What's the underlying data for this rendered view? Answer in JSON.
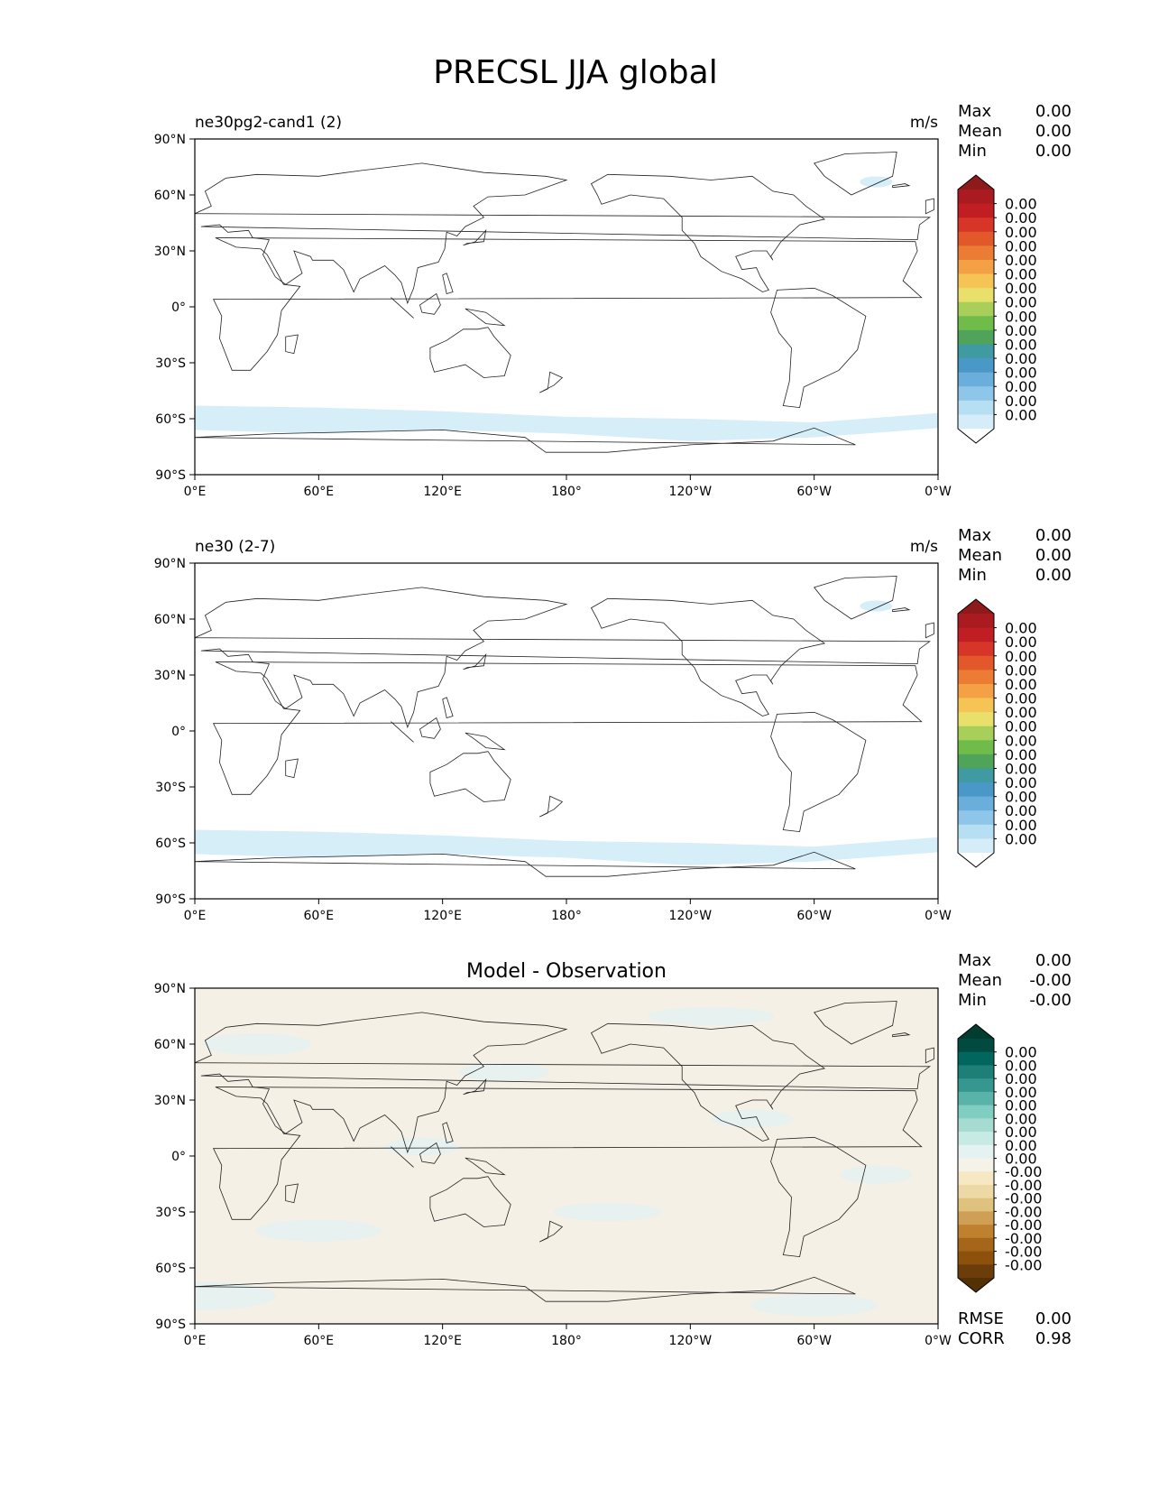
{
  "figure": {
    "title": "PRECSL JJA global"
  },
  "axes": {
    "lat_ticks": [
      "90°N",
      "60°N",
      "30°N",
      "0°",
      "30°S",
      "60°S",
      "90°S"
    ],
    "lon_ticks": [
      "0°E",
      "60°E",
      "120°E",
      "180°",
      "120°W",
      "60°W",
      "0°W"
    ]
  },
  "panels": [
    {
      "left_title": "ne30pg2-cand1 (2)",
      "center_title": "",
      "units": "m/s",
      "stats": [
        {
          "label": "Max",
          "value": "0.00"
        },
        {
          "label": "Mean",
          "value": "0.00"
        },
        {
          "label": "Min",
          "value": "0.00"
        }
      ],
      "colorbar": {
        "labels": [
          "0.00",
          "0.00",
          "0.00",
          "0.00",
          "0.00",
          "0.00",
          "0.00",
          "0.00",
          "0.00",
          "0.00",
          "0.00",
          "0.00",
          "0.00",
          "0.00",
          "0.00",
          "0.00"
        ],
        "colors": [
          "#ffffff",
          "#d5edf8",
          "#b6dff4",
          "#8ec6ea",
          "#6aaedc",
          "#4a98c8",
          "#3f9aa2",
          "#4fa45a",
          "#6fbc4a",
          "#a8cf5a",
          "#e8e06a",
          "#f6c355",
          "#f3a144",
          "#ec7c34",
          "#e3582b",
          "#d63528",
          "#c11e24",
          "#a91b20",
          "#8e1a1b"
        ]
      },
      "field": {
        "fill": "#d6eef8",
        "bands": "southern-ocean"
      },
      "footer": []
    },
    {
      "left_title": "ne30 (2-7)",
      "center_title": "",
      "units": "m/s",
      "stats": [
        {
          "label": "Max",
          "value": "0.00"
        },
        {
          "label": "Mean",
          "value": "0.00"
        },
        {
          "label": "Min",
          "value": "0.00"
        }
      ],
      "colorbar": {
        "labels": [
          "0.00",
          "0.00",
          "0.00",
          "0.00",
          "0.00",
          "0.00",
          "0.00",
          "0.00",
          "0.00",
          "0.00",
          "0.00",
          "0.00",
          "0.00",
          "0.00",
          "0.00",
          "0.00"
        ],
        "colors": [
          "#ffffff",
          "#d5edf8",
          "#b6dff4",
          "#8ec6ea",
          "#6aaedc",
          "#4a98c8",
          "#3f9aa2",
          "#4fa45a",
          "#6fbc4a",
          "#a8cf5a",
          "#e8e06a",
          "#f6c355",
          "#f3a144",
          "#ec7c34",
          "#e3582b",
          "#d63528",
          "#c11e24",
          "#a91b20",
          "#8e1a1b"
        ]
      },
      "field": {
        "fill": "#d6eef8",
        "bands": "southern-ocean"
      },
      "footer": []
    },
    {
      "left_title": "",
      "center_title": "Model - Observation",
      "units": "",
      "stats": [
        {
          "label": "Max",
          "value": "0.00"
        },
        {
          "label": "Mean",
          "value": "-0.00"
        },
        {
          "label": "Min",
          "value": "-0.00"
        }
      ],
      "colorbar": {
        "labels": [
          "0.00",
          "0.00",
          "0.00",
          "0.00",
          "0.00",
          "0.00",
          "0.00",
          "0.00",
          "0.00",
          "-0.00",
          "-0.00",
          "-0.00",
          "-0.00",
          "-0.00",
          "-0.00",
          "-0.00",
          "-0.00"
        ],
        "colors": [
          "#543005",
          "#6b3d0a",
          "#8c510a",
          "#a6661a",
          "#bf812d",
          "#cf9f55",
          "#dfc27d",
          "#ecd9a6",
          "#f6e8c3",
          "#f5f2e8",
          "#e4f2f1",
          "#c7eae5",
          "#a6dbd2",
          "#80cdc1",
          "#5ab3a8",
          "#35978f",
          "#1d7f76",
          "#01665e",
          "#014a40",
          "#003c30"
        ]
      },
      "field": {
        "fill": "#f4f0e6",
        "bands": "diff"
      },
      "footer": [
        {
          "label": "RMSE",
          "value": "0.00"
        },
        {
          "label": "CORR",
          "value": "0.98"
        }
      ]
    }
  ]
}
